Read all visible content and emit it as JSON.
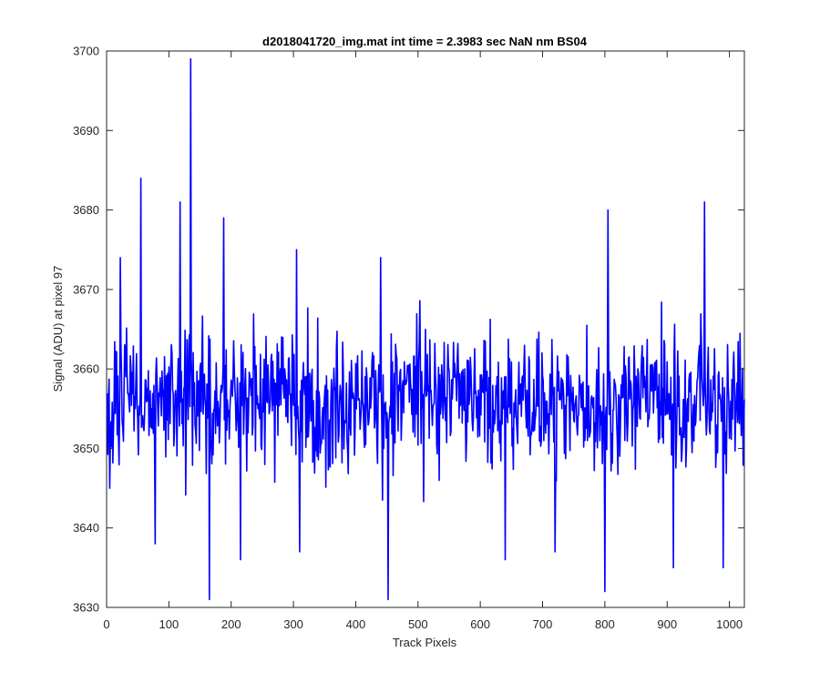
{
  "chart_data": {
    "type": "line",
    "title": "d2018041720_img.mat int time = 2.3983 sec  NaN nm BS04",
    "xlabel": "Track Pixels",
    "ylabel": "Signal (ADU) at pixel 97",
    "xlim": [
      0,
      1024
    ],
    "ylim": [
      3630,
      3700
    ],
    "xticks": [
      0,
      100,
      200,
      300,
      400,
      500,
      600,
      700,
      800,
      900,
      1000
    ],
    "yticks": [
      3630,
      3640,
      3650,
      3660,
      3670,
      3680,
      3690,
      3700
    ],
    "grid": false,
    "box": true,
    "series": [
      {
        "color": "#0000ff",
        "x_start": 1,
        "x_step": 1,
        "count": 1024,
        "mean": 3656,
        "spread": 6,
        "notable_points": [
          {
            "x": 5,
            "y": 3645
          },
          {
            "x": 22,
            "y": 3674
          },
          {
            "x": 55,
            "y": 3684
          },
          {
            "x": 78,
            "y": 3638
          },
          {
            "x": 118,
            "y": 3681
          },
          {
            "x": 135,
            "y": 3699
          },
          {
            "x": 165,
            "y": 3631
          },
          {
            "x": 188,
            "y": 3679
          },
          {
            "x": 215,
            "y": 3636
          },
          {
            "x": 305,
            "y": 3675
          },
          {
            "x": 310,
            "y": 3637
          },
          {
            "x": 440,
            "y": 3674
          },
          {
            "x": 452,
            "y": 3631
          },
          {
            "x": 640,
            "y": 3636
          },
          {
            "x": 720,
            "y": 3637
          },
          {
            "x": 800,
            "y": 3632
          },
          {
            "x": 805,
            "y": 3680
          },
          {
            "x": 910,
            "y": 3635
          },
          {
            "x": 960,
            "y": 3681
          },
          {
            "x": 990,
            "y": 3635
          }
        ]
      }
    ]
  }
}
